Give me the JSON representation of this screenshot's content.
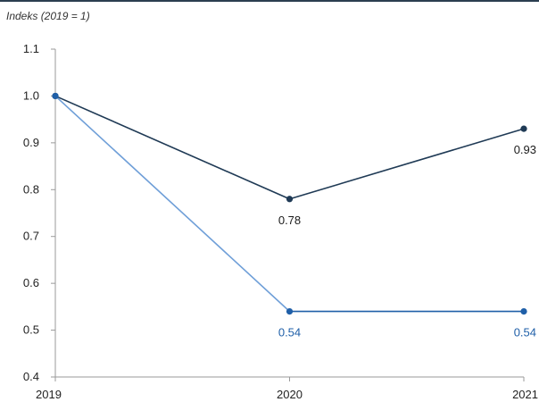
{
  "chart_data": {
    "type": "line",
    "title": "",
    "ylabel": "Indeks (2019 = 1)",
    "xlabel": "",
    "x": [
      "2019",
      "2020",
      "2021"
    ],
    "ylim": [
      0.4,
      1.1
    ],
    "yticks": [
      "0.4",
      "0.5",
      "0.6",
      "0.7",
      "0.8",
      "0.9",
      "1.0",
      "1.1"
    ],
    "grid": false,
    "legend": "none",
    "series": [
      {
        "values": [
          1.0,
          0.78,
          0.93
        ],
        "data_labels": [
          "",
          "0.78",
          "0.93"
        ],
        "color": "#1f3a55",
        "label_color": "#1a1a1a"
      },
      {
        "values": [
          1.0,
          0.54,
          0.54
        ],
        "data_labels": [
          "",
          "0.54",
          "0.54"
        ],
        "color": "#6f9fd8",
        "marker_color": "#1f5fa8",
        "segment_colors": [
          "#6f9fd8",
          "#1f5fa8"
        ],
        "label_color": "#1f5fa8"
      }
    ],
    "colors": {
      "top_rule": "#2b3e50",
      "axis": "#9a9a9a"
    }
  }
}
